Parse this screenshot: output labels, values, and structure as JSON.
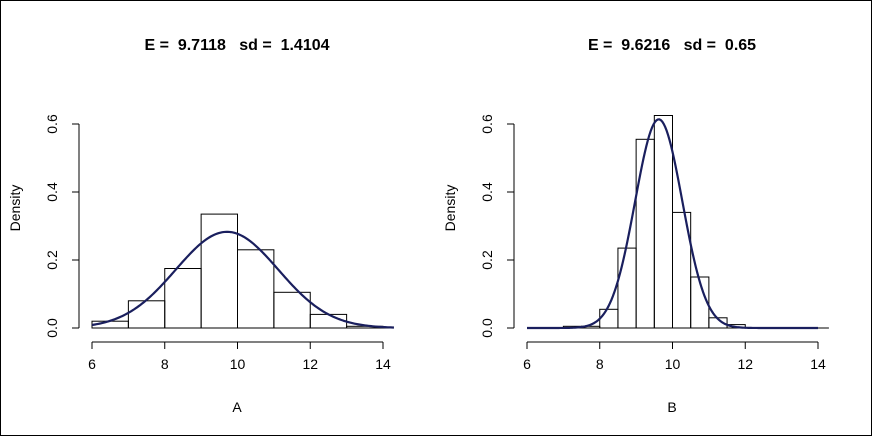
{
  "chart_data": [
    {
      "type": "histogram",
      "title": "E =  9.7118   sd =  1.4104",
      "xlabel": "A",
      "ylabel": "Density",
      "xlim": [
        5.9,
        14.3
      ],
      "ylim": [
        0,
        0.69
      ],
      "xticks": [
        "6",
        "8",
        "10",
        "12",
        "14"
      ],
      "yticks": [
        "0.0",
        "0.2",
        "0.4",
        "0.6"
      ],
      "bins": [
        {
          "x0": 6,
          "x1": 7,
          "density": 0.02
        },
        {
          "x0": 7,
          "x1": 8,
          "density": 0.08
        },
        {
          "x0": 8,
          "x1": 9,
          "density": 0.175
        },
        {
          "x0": 9,
          "x1": 10,
          "density": 0.335
        },
        {
          "x0": 10,
          "x1": 11,
          "density": 0.23
        },
        {
          "x0": 11,
          "x1": 12,
          "density": 0.105
        },
        {
          "x0": 12,
          "x1": 13,
          "density": 0.04
        },
        {
          "x0": 13,
          "x1": 14,
          "density": 0.005
        }
      ],
      "curve": {
        "type": "normal_density",
        "mean": 9.7118,
        "sd": 1.4104,
        "from": 6,
        "to": 14.3,
        "color": "#1a1f5e"
      }
    },
    {
      "type": "histogram",
      "title": "E =  9.6216   sd =  0.65",
      "xlabel": "B",
      "ylabel": "Density",
      "xlim": [
        5.9,
        14.3
      ],
      "ylim": [
        0,
        0.69
      ],
      "xticks": [
        "6",
        "8",
        "10",
        "12",
        "14"
      ],
      "yticks": [
        "0.0",
        "0.2",
        "0.4",
        "0.6"
      ],
      "bins": [
        {
          "x0": 7,
          "x1": 7.5,
          "density": 0.005
        },
        {
          "x0": 7.5,
          "x1": 8,
          "density": 0.005
        },
        {
          "x0": 8,
          "x1": 8.5,
          "density": 0.055
        },
        {
          "x0": 8.5,
          "x1": 9,
          "density": 0.235
        },
        {
          "x0": 9,
          "x1": 9.5,
          "density": 0.555
        },
        {
          "x0": 9.5,
          "x1": 10,
          "density": 0.625
        },
        {
          "x0": 10,
          "x1": 10.5,
          "density": 0.34
        },
        {
          "x0": 10.5,
          "x1": 11,
          "density": 0.15
        },
        {
          "x0": 11,
          "x1": 11.5,
          "density": 0.03
        },
        {
          "x0": 11.5,
          "x1": 12,
          "density": 0.01
        }
      ],
      "curve": {
        "type": "normal_density",
        "mean": 9.6216,
        "sd": 0.65,
        "from": 6,
        "to": 14,
        "color": "#1a1f5e"
      }
    }
  ]
}
